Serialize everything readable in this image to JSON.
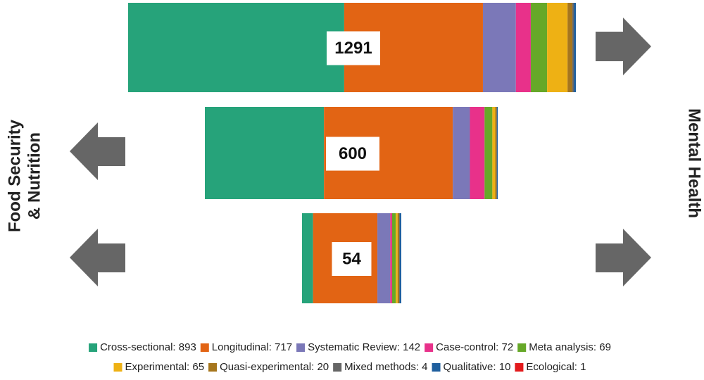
{
  "chart_data": {
    "type": "stacked-bar",
    "left_label_lines": [
      "Food Security",
      "& Nutrition"
    ],
    "right_label": "Mental Health",
    "totals": [
      1291,
      600,
      54
    ],
    "series": [
      {
        "name": "Cross-sectional: 893",
        "color": "#26a37a",
        "values": [
          623,
          244,
          6
        ]
      },
      {
        "name": "Longitudinal: 717",
        "color": "#e26414",
        "values": [
          400,
          264,
          35
        ]
      },
      {
        "name": "Systematic Review: 142",
        "color": "#7b78b8",
        "values": [
          95,
          35,
          7
        ]
      },
      {
        "name": "Case-control: 72",
        "color": "#e8318a",
        "values": [
          43,
          30,
          1
        ]
      },
      {
        "name": "Meta analysis: 69",
        "color": "#66a828",
        "values": [
          47,
          16,
          2
        ]
      },
      {
        "name": "Experimental: 65",
        "color": "#eeb114",
        "values": [
          59,
          6,
          1
        ]
      },
      {
        "name": "Quasi-experimental: 20",
        "color": "#a6761d",
        "values": [
          14,
          3,
          1
        ]
      },
      {
        "name": "Mixed methods: 4",
        "color": "#666666",
        "values": [
          4,
          0,
          0
        ]
      },
      {
        "name": "Qualitative: 10",
        "color": "#1f5f9e",
        "values": [
          6,
          2,
          1
        ]
      },
      {
        "name": "Ecological: 1",
        "color": "#e31a1c",
        "values": [
          0,
          0,
          0
        ]
      }
    ]
  }
}
